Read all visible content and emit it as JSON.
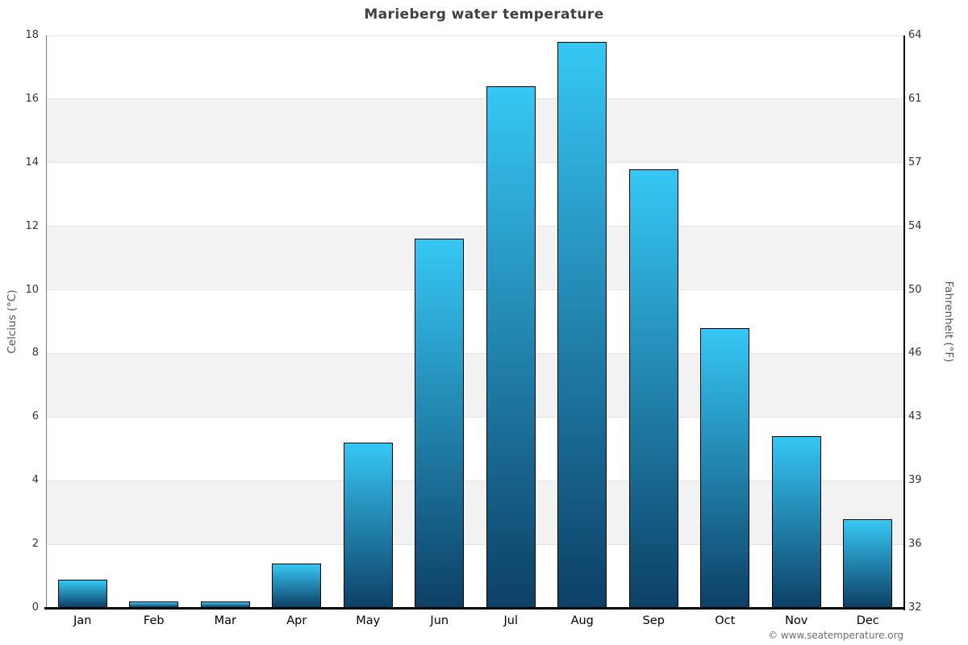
{
  "page": {
    "watermark": "© www.seatemperature.org"
  },
  "chart_data": {
    "type": "bar",
    "title": "Marieberg water temperature",
    "categories": [
      "Jan",
      "Feb",
      "Mar",
      "Apr",
      "May",
      "Jun",
      "Jul",
      "Aug",
      "Sep",
      "Oct",
      "Nov",
      "Dec"
    ],
    "values": [
      0.9,
      0.2,
      0.2,
      1.4,
      5.2,
      11.6,
      16.4,
      17.8,
      13.8,
      8.8,
      5.4,
      2.8
    ],
    "ylabel_left": "Celcius (°C)",
    "ylabel_right": "Fahrenheit (°F)",
    "yticks_left": [
      0,
      2,
      4,
      6,
      8,
      10,
      12,
      14,
      16,
      18
    ],
    "yticks_right": [
      32,
      36,
      39,
      43,
      46,
      50,
      54,
      57,
      61,
      64
    ],
    "ylim": [
      0,
      18
    ],
    "grid": true,
    "legend": false,
    "colors": {
      "bar_gradient_top": "#36c7f4",
      "bar_gradient_bottom": "#0d4066",
      "bar_border": "#000000",
      "band_fill": "#f2f2f2",
      "gridline": "#e3e3e3",
      "axis_left_line": "#7a7a7a",
      "axis_right_line": "#000000",
      "axis_bottom_line": "#000000",
      "title_color": "#404040",
      "tick_label_color": "#333333",
      "axis_title_color": "#555555",
      "watermark_color": "#6e6e6e"
    }
  }
}
